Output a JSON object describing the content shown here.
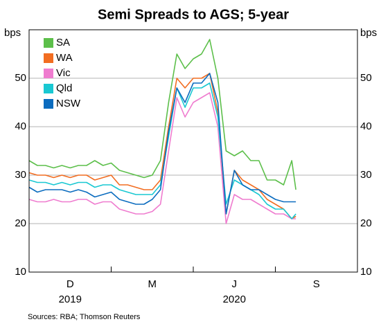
{
  "chart_data": {
    "type": "line",
    "title": "Semi Spreads to AGS; 5-year",
    "y_label": "bps",
    "y2_label": "bps",
    "source": "Sources: RBA; Thomson Reuters",
    "categories": [
      "D",
      "M",
      "J",
      "S"
    ],
    "category_years": [
      "2019",
      null,
      "2020",
      null
    ],
    "x": [
      0,
      0.1,
      0.2,
      0.3,
      0.4,
      0.5,
      0.6,
      0.7,
      0.8,
      0.9,
      1.0,
      1.1,
      1.2,
      1.3,
      1.4,
      1.5,
      1.6,
      1.7,
      1.8,
      1.9,
      2.0,
      2.1,
      2.2,
      2.3,
      2.4,
      2.5,
      2.6,
      2.7,
      2.8,
      2.9,
      3.0,
      3.1,
      3.2,
      3.25
    ],
    "xlim": [
      0,
      4
    ],
    "xticks": [
      0,
      1,
      2,
      3,
      4
    ],
    "ylim": [
      10,
      60
    ],
    "yticks": [
      10,
      20,
      30,
      40,
      50
    ],
    "y2lim": [
      10,
      60
    ],
    "y2ticks": [
      10,
      20,
      30,
      40,
      50
    ],
    "grid": true,
    "legend": "upper left",
    "series": [
      {
        "name": "SA",
        "color": "#5cbf4a",
        "values": [
          33,
          32,
          32,
          31.5,
          32,
          31.5,
          32,
          32,
          33,
          32,
          32.5,
          31,
          30.5,
          30,
          29.5,
          30,
          33,
          45,
          55,
          52,
          54,
          55,
          58,
          50,
          35,
          34,
          35,
          33,
          33,
          29,
          29,
          28,
          33,
          27
        ]
      },
      {
        "name": "WA",
        "color": "#f26d21",
        "values": [
          30.5,
          30,
          30,
          29.5,
          30,
          29.5,
          30,
          30,
          29,
          29.5,
          30,
          28,
          28,
          27.5,
          27,
          27,
          29,
          40,
          50,
          48,
          50,
          50,
          51,
          43,
          22,
          31,
          29,
          28,
          27,
          25,
          24,
          23,
          21,
          21.5
        ]
      },
      {
        "name": "Vic",
        "color": "#ef7ccf",
        "values": [
          25,
          24.5,
          24.5,
          25,
          24.5,
          24.5,
          25,
          25,
          24,
          24.5,
          24.5,
          23,
          22.5,
          22,
          22,
          22.5,
          24,
          35,
          46,
          42,
          45,
          46,
          47,
          40,
          20,
          26,
          25,
          25,
          24,
          23,
          22,
          22,
          21,
          21
        ]
      },
      {
        "name": "Qld",
        "color": "#19c8d2",
        "values": [
          29,
          28.5,
          28.5,
          28,
          28.5,
          28,
          28.5,
          28.5,
          27.5,
          28,
          28,
          27,
          26.5,
          26,
          26,
          26,
          28,
          38,
          48,
          44,
          48,
          48,
          49,
          42,
          24,
          29,
          28,
          27,
          26,
          24,
          23,
          23,
          21,
          22
        ]
      },
      {
        "name": "NSW",
        "color": "#0b6cbf",
        "values": [
          27.5,
          26.5,
          27,
          27,
          27,
          26.5,
          27,
          26.5,
          25.5,
          26,
          26.5,
          25,
          24.5,
          24,
          24,
          25,
          27,
          39,
          48,
          45,
          49,
          49,
          51,
          45,
          22,
          31,
          28,
          27,
          27,
          26,
          25,
          24.5,
          24.5,
          24.5
        ]
      }
    ]
  }
}
